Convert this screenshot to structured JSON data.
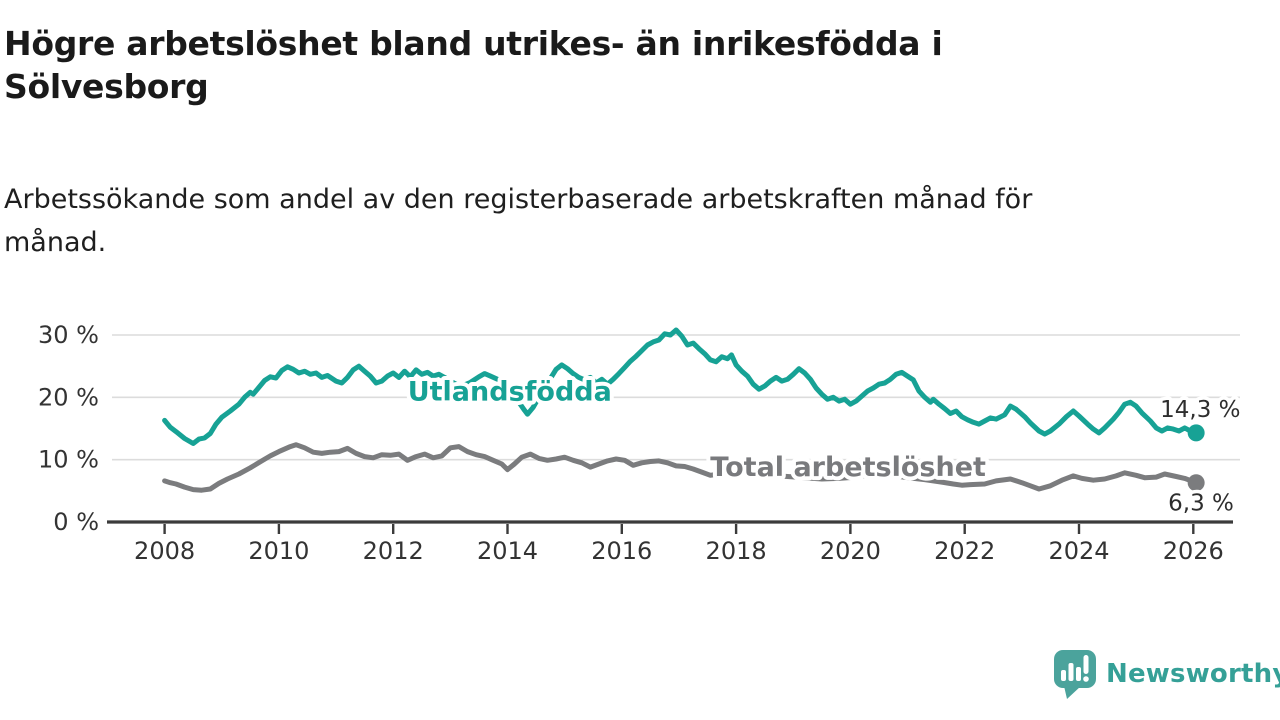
{
  "header": {
    "title": "Högre arbetslöshet bland utrikes- än inrikesfödda i\nSölvesborg",
    "subtitle": "Arbetssökande som andel av den registerbaserade arbetskraften månad för\nmånad."
  },
  "footer": {
    "brand": "Newsworthy"
  },
  "colors": {
    "accent_teal": "#17a295",
    "line_gray": "#7b7c7e",
    "grid": "#dcdcdc",
    "axis": "#3b3b3b",
    "logo_teal": "#4ba39c"
  },
  "chart_data": {
    "type": "line",
    "title": "Högre arbetslöshet bland utrikes- än inrikesfödda i Sölvesborg",
    "subtitle": "Arbetssökande som andel av den registerbaserade arbetskraften månad för månad.",
    "xlabel": "",
    "ylabel": "",
    "unit": "%",
    "grid": "horizontal",
    "legend": "inline-labels",
    "xlim": [
      2007.1,
      2026.7
    ],
    "ylim": [
      0,
      32
    ],
    "x_ticks": [
      {
        "year": 2008,
        "label": "2008"
      },
      {
        "year": 2010,
        "label": "2010"
      },
      {
        "year": 2012,
        "label": "2012"
      },
      {
        "year": 2014,
        "label": "2014"
      },
      {
        "year": 2016,
        "label": "2016"
      },
      {
        "year": 2018,
        "label": "2018"
      },
      {
        "year": 2020,
        "label": "2020"
      },
      {
        "year": 2022,
        "label": "2022"
      },
      {
        "year": 2024,
        "label": "2024"
      },
      {
        "year": 2026,
        "label": "2026"
      }
    ],
    "y_ticks": [
      {
        "value": 0,
        "label": "0 %"
      },
      {
        "value": 10,
        "label": "10 %"
      },
      {
        "value": 20,
        "label": "20 %"
      },
      {
        "value": 30,
        "label": "30 %"
      }
    ],
    "series": [
      {
        "name": "Total arbetslöshet",
        "id": "total-arbetsloshet",
        "color": "#7b7c7e",
        "label_color": "#797a7d",
        "label_pos": {
          "year": 2019.96,
          "value": 8.8
        },
        "end_label": "6,3 %",
        "end_label_offset": {
          "dx": -28,
          "dy": 28
        },
        "points": [
          [
            2008.0,
            6.6
          ],
          [
            2008.1,
            6.3
          ],
          [
            2008.2,
            6.1
          ],
          [
            2008.35,
            5.6
          ],
          [
            2008.5,
            5.2
          ],
          [
            2008.65,
            5.1
          ],
          [
            2008.8,
            5.3
          ],
          [
            2008.95,
            6.2
          ],
          [
            2009.1,
            6.9
          ],
          [
            2009.3,
            7.7
          ],
          [
            2009.5,
            8.7
          ],
          [
            2009.7,
            9.8
          ],
          [
            2009.85,
            10.6
          ],
          [
            2010.0,
            11.3
          ],
          [
            2010.2,
            12.1
          ],
          [
            2010.3,
            12.4
          ],
          [
            2010.45,
            11.9
          ],
          [
            2010.6,
            11.2
          ],
          [
            2010.75,
            11.0
          ],
          [
            2010.9,
            11.2
          ],
          [
            2011.05,
            11.3
          ],
          [
            2011.2,
            11.8
          ],
          [
            2011.35,
            11.0
          ],
          [
            2011.5,
            10.5
          ],
          [
            2011.65,
            10.3
          ],
          [
            2011.8,
            10.8
          ],
          [
            2011.95,
            10.7
          ],
          [
            2012.1,
            10.9
          ],
          [
            2012.25,
            9.9
          ],
          [
            2012.4,
            10.5
          ],
          [
            2012.55,
            10.9
          ],
          [
            2012.7,
            10.3
          ],
          [
            2012.85,
            10.6
          ],
          [
            2013.0,
            11.9
          ],
          [
            2013.15,
            12.1
          ],
          [
            2013.3,
            11.3
          ],
          [
            2013.45,
            10.8
          ],
          [
            2013.6,
            10.5
          ],
          [
            2013.75,
            9.9
          ],
          [
            2013.9,
            9.3
          ],
          [
            2014.0,
            8.4
          ],
          [
            2014.12,
            9.3
          ],
          [
            2014.25,
            10.4
          ],
          [
            2014.4,
            10.9
          ],
          [
            2014.55,
            10.2
          ],
          [
            2014.7,
            9.9
          ],
          [
            2014.85,
            10.1
          ],
          [
            2015.0,
            10.4
          ],
          [
            2015.15,
            9.9
          ],
          [
            2015.3,
            9.5
          ],
          [
            2015.45,
            8.8
          ],
          [
            2015.6,
            9.3
          ],
          [
            2015.75,
            9.8
          ],
          [
            2015.9,
            10.1
          ],
          [
            2016.05,
            9.9
          ],
          [
            2016.2,
            9.1
          ],
          [
            2016.35,
            9.5
          ],
          [
            2016.5,
            9.7
          ],
          [
            2016.65,
            9.8
          ],
          [
            2016.8,
            9.5
          ],
          [
            2016.95,
            9.0
          ],
          [
            2017.1,
            8.9
          ],
          [
            2017.25,
            8.5
          ],
          [
            2017.4,
            8.0
          ],
          [
            2017.55,
            7.5
          ],
          [
            2017.7,
            7.7
          ],
          [
            2017.85,
            7.9
          ],
          [
            2018.0,
            7.9
          ],
          [
            2018.3,
            7.7
          ],
          [
            2018.6,
            7.5
          ],
          [
            2018.9,
            7.3
          ],
          [
            2019.2,
            7.1
          ],
          [
            2019.5,
            6.9
          ],
          [
            2019.8,
            7.0
          ],
          [
            2020.1,
            7.2
          ],
          [
            2020.4,
            7.7
          ],
          [
            2020.7,
            7.5
          ],
          [
            2021.0,
            7.1
          ],
          [
            2021.3,
            6.8
          ],
          [
            2021.6,
            6.4
          ],
          [
            2021.8,
            6.1
          ],
          [
            2021.95,
            5.9
          ],
          [
            2022.1,
            6.0
          ],
          [
            2022.35,
            6.1
          ],
          [
            2022.55,
            6.6
          ],
          [
            2022.8,
            6.9
          ],
          [
            2023.0,
            6.3
          ],
          [
            2023.15,
            5.8
          ],
          [
            2023.3,
            5.3
          ],
          [
            2023.5,
            5.8
          ],
          [
            2023.7,
            6.7
          ],
          [
            2023.9,
            7.4
          ],
          [
            2024.05,
            7.0
          ],
          [
            2024.25,
            6.7
          ],
          [
            2024.45,
            6.9
          ],
          [
            2024.65,
            7.4
          ],
          [
            2024.8,
            7.9
          ],
          [
            2025.0,
            7.5
          ],
          [
            2025.15,
            7.1
          ],
          [
            2025.35,
            7.2
          ],
          [
            2025.5,
            7.7
          ],
          [
            2025.7,
            7.3
          ],
          [
            2025.85,
            7.0
          ],
          [
            2026.05,
            6.3
          ]
        ]
      },
      {
        "name": "Utlandsfödda",
        "id": "utlandsfodda",
        "color": "#17a295",
        "label_color": "#17a295",
        "label_pos": {
          "year": 2014.04,
          "value": 20.9
        },
        "end_label": "14,3 %",
        "end_label_offset": {
          "dx": -36,
          "dy": -16
        },
        "points": [
          [
            2008.0,
            16.3
          ],
          [
            2008.1,
            15.2
          ],
          [
            2008.2,
            14.5
          ],
          [
            2008.35,
            13.4
          ],
          [
            2008.5,
            12.6
          ],
          [
            2008.6,
            13.3
          ],
          [
            2008.7,
            13.5
          ],
          [
            2008.8,
            14.2
          ],
          [
            2008.9,
            15.7
          ],
          [
            2009.0,
            16.8
          ],
          [
            2009.15,
            17.8
          ],
          [
            2009.3,
            18.9
          ],
          [
            2009.4,
            20.0
          ],
          [
            2009.5,
            20.8
          ],
          [
            2009.55,
            20.5
          ],
          [
            2009.65,
            21.6
          ],
          [
            2009.75,
            22.7
          ],
          [
            2009.85,
            23.3
          ],
          [
            2009.95,
            23.1
          ],
          [
            2010.05,
            24.3
          ],
          [
            2010.15,
            24.9
          ],
          [
            2010.25,
            24.5
          ],
          [
            2010.35,
            23.9
          ],
          [
            2010.45,
            24.2
          ],
          [
            2010.55,
            23.7
          ],
          [
            2010.65,
            23.9
          ],
          [
            2010.75,
            23.2
          ],
          [
            2010.85,
            23.5
          ],
          [
            2011.0,
            22.6
          ],
          [
            2011.1,
            22.3
          ],
          [
            2011.2,
            23.2
          ],
          [
            2011.3,
            24.4
          ],
          [
            2011.4,
            25.0
          ],
          [
            2011.5,
            24.2
          ],
          [
            2011.6,
            23.4
          ],
          [
            2011.7,
            22.3
          ],
          [
            2011.8,
            22.6
          ],
          [
            2011.9,
            23.4
          ],
          [
            2012.0,
            23.9
          ],
          [
            2012.1,
            23.2
          ],
          [
            2012.2,
            24.2
          ],
          [
            2012.3,
            23.3
          ],
          [
            2012.4,
            24.4
          ],
          [
            2012.5,
            23.7
          ],
          [
            2012.6,
            24.0
          ],
          [
            2012.7,
            23.4
          ],
          [
            2012.8,
            23.7
          ],
          [
            2012.9,
            23.2
          ],
          [
            2013.0,
            22.6
          ],
          [
            2013.1,
            22.1
          ],
          [
            2013.2,
            21.8
          ],
          [
            2013.35,
            22.4
          ],
          [
            2013.5,
            23.3
          ],
          [
            2013.6,
            23.8
          ],
          [
            2013.7,
            23.4
          ],
          [
            2013.85,
            22.8
          ],
          [
            2014.0,
            22.1
          ],
          [
            2014.1,
            20.8
          ],
          [
            2014.2,
            19.2
          ],
          [
            2014.3,
            17.9
          ],
          [
            2014.35,
            17.3
          ],
          [
            2014.45,
            18.4
          ],
          [
            2014.55,
            20.0
          ],
          [
            2014.65,
            21.5
          ],
          [
            2014.75,
            23.0
          ],
          [
            2014.85,
            24.5
          ],
          [
            2014.95,
            25.2
          ],
          [
            2015.05,
            24.6
          ],
          [
            2015.15,
            23.8
          ],
          [
            2015.25,
            23.2
          ],
          [
            2015.35,
            22.8
          ],
          [
            2015.45,
            23.2
          ],
          [
            2015.55,
            22.3
          ],
          [
            2015.65,
            22.9
          ],
          [
            2015.75,
            22.1
          ],
          [
            2015.85,
            22.9
          ],
          [
            2015.95,
            23.8
          ],
          [
            2016.05,
            24.8
          ],
          [
            2016.15,
            25.8
          ],
          [
            2016.25,
            26.6
          ],
          [
            2016.35,
            27.5
          ],
          [
            2016.45,
            28.4
          ],
          [
            2016.55,
            28.9
          ],
          [
            2016.65,
            29.2
          ],
          [
            2016.75,
            30.2
          ],
          [
            2016.85,
            30.0
          ],
          [
            2016.95,
            30.8
          ],
          [
            2017.05,
            29.8
          ],
          [
            2017.15,
            28.4
          ],
          [
            2017.25,
            28.7
          ],
          [
            2017.35,
            27.8
          ],
          [
            2017.45,
            27.0
          ],
          [
            2017.55,
            26.0
          ],
          [
            2017.65,
            25.7
          ],
          [
            2017.75,
            26.5
          ],
          [
            2017.85,
            26.2
          ],
          [
            2017.92,
            26.8
          ],
          [
            2018.0,
            25.2
          ],
          [
            2018.1,
            24.2
          ],
          [
            2018.2,
            23.4
          ],
          [
            2018.3,
            22.1
          ],
          [
            2018.4,
            21.3
          ],
          [
            2018.5,
            21.8
          ],
          [
            2018.6,
            22.6
          ],
          [
            2018.7,
            23.2
          ],
          [
            2018.8,
            22.6
          ],
          [
            2018.9,
            22.9
          ],
          [
            2019.0,
            23.7
          ],
          [
            2019.1,
            24.6
          ],
          [
            2019.2,
            23.9
          ],
          [
            2019.3,
            22.9
          ],
          [
            2019.4,
            21.5
          ],
          [
            2019.5,
            20.5
          ],
          [
            2019.6,
            19.7
          ],
          [
            2019.7,
            20.0
          ],
          [
            2019.8,
            19.4
          ],
          [
            2019.9,
            19.7
          ],
          [
            2020.0,
            18.9
          ],
          [
            2020.1,
            19.4
          ],
          [
            2020.2,
            20.2
          ],
          [
            2020.3,
            21.0
          ],
          [
            2020.4,
            21.5
          ],
          [
            2020.5,
            22.1
          ],
          [
            2020.6,
            22.3
          ],
          [
            2020.7,
            22.9
          ],
          [
            2020.8,
            23.7
          ],
          [
            2020.9,
            24.0
          ],
          [
            2021.0,
            23.4
          ],
          [
            2021.1,
            22.8
          ],
          [
            2021.2,
            21.0
          ],
          [
            2021.3,
            20.0
          ],
          [
            2021.4,
            19.2
          ],
          [
            2021.45,
            19.7
          ],
          [
            2021.55,
            18.9
          ],
          [
            2021.65,
            18.2
          ],
          [
            2021.75,
            17.4
          ],
          [
            2021.85,
            17.8
          ],
          [
            2021.95,
            16.9
          ],
          [
            2022.05,
            16.4
          ],
          [
            2022.15,
            16.0
          ],
          [
            2022.25,
            15.7
          ],
          [
            2022.35,
            16.2
          ],
          [
            2022.45,
            16.7
          ],
          [
            2022.55,
            16.5
          ],
          [
            2022.7,
            17.2
          ],
          [
            2022.8,
            18.6
          ],
          [
            2022.9,
            18.1
          ],
          [
            2023.05,
            16.9
          ],
          [
            2023.15,
            15.9
          ],
          [
            2023.3,
            14.6
          ],
          [
            2023.4,
            14.1
          ],
          [
            2023.5,
            14.6
          ],
          [
            2023.65,
            15.7
          ],
          [
            2023.78,
            16.9
          ],
          [
            2023.9,
            17.8
          ],
          [
            2024.0,
            17.0
          ],
          [
            2024.15,
            15.7
          ],
          [
            2024.25,
            14.9
          ],
          [
            2024.35,
            14.3
          ],
          [
            2024.45,
            15.1
          ],
          [
            2024.6,
            16.5
          ],
          [
            2024.7,
            17.6
          ],
          [
            2024.8,
            18.9
          ],
          [
            2024.9,
            19.2
          ],
          [
            2025.0,
            18.6
          ],
          [
            2025.1,
            17.5
          ],
          [
            2025.25,
            16.2
          ],
          [
            2025.35,
            15.1
          ],
          [
            2025.45,
            14.6
          ],
          [
            2025.55,
            15.1
          ],
          [
            2025.65,
            14.9
          ],
          [
            2025.75,
            14.6
          ],
          [
            2025.85,
            15.1
          ],
          [
            2025.95,
            14.6
          ],
          [
            2026.05,
            14.3
          ]
        ]
      }
    ]
  }
}
